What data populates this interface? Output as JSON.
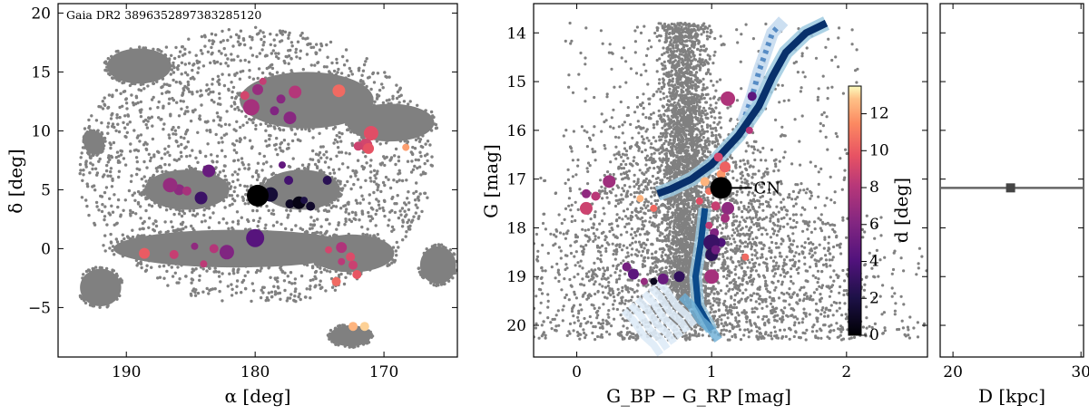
{
  "chart_data": [
    {
      "type": "scatter",
      "panel": "sky",
      "annotation": "Gaia DR2 3896352897383285120",
      "xlabel": "α [deg]",
      "ylabel": "δ [deg]",
      "xlim": [
        195.3,
        164.3
      ],
      "ylim": [
        -9.2,
        20.8
      ],
      "xticks": [
        190,
        180,
        170
      ],
      "yticks": [
        -5,
        0,
        5,
        10,
        15,
        20
      ],
      "target": {
        "x": 179.8,
        "y": 4.5
      },
      "background_color": "#808080",
      "dense_regions": [
        {
          "cx": 176.0,
          "cy": 12.6,
          "rx": 5.2,
          "ry": 2.4
        },
        {
          "cx": 169.5,
          "cy": 10.7,
          "rx": 3.4,
          "ry": 1.6
        },
        {
          "cx": 185.3,
          "cy": 5.0,
          "rx": 3.3,
          "ry": 1.7
        },
        {
          "cx": 176.4,
          "cy": 5.0,
          "rx": 3.0,
          "ry": 1.7
        },
        {
          "cx": 181.5,
          "cy": 0.0,
          "rx": 9.5,
          "ry": 1.6
        },
        {
          "cx": 172.5,
          "cy": -0.4,
          "rx": 3.3,
          "ry": 1.6
        },
        {
          "cx": 192.0,
          "cy": -3.3,
          "rx": 1.6,
          "ry": 1.6
        },
        {
          "cx": 165.8,
          "cy": -1.4,
          "rx": 1.4,
          "ry": 1.6
        },
        {
          "cx": 189.0,
          "cy": 15.5,
          "rx": 2.5,
          "ry": 1.5
        },
        {
          "cx": 192.5,
          "cy": 9.0,
          "rx": 0.8,
          "ry": 1.0
        },
        {
          "cx": 172.6,
          "cy": -7.4,
          "rx": 1.6,
          "ry": 0.9
        }
      ],
      "members": [
        {
          "x": 178.8,
          "y": 4.6,
          "d": 1.5,
          "s": 8
        },
        {
          "x": 177.3,
          "y": 3.8,
          "d": 1.0,
          "s": 5
        },
        {
          "x": 176.6,
          "y": 3.9,
          "d": 0.5,
          "s": 7
        },
        {
          "x": 175.7,
          "y": 3.6,
          "d": 1.2,
          "s": 5
        },
        {
          "x": 176.2,
          "y": 4.1,
          "d": 2.0,
          "s": 4
        },
        {
          "x": 174.4,
          "y": 5.8,
          "d": 2.5,
          "s": 5
        },
        {
          "x": 177.4,
          "y": 5.8,
          "d": 3.5,
          "s": 5
        },
        {
          "x": 177.9,
          "y": 7.1,
          "d": 4.8,
          "s": 4
        },
        {
          "x": 180.0,
          "y": 0.9,
          "d": 4.3,
          "s": 10
        },
        {
          "x": 184.2,
          "y": 4.3,
          "d": 3.2,
          "s": 7
        },
        {
          "x": 183.6,
          "y": 6.6,
          "d": 5.0,
          "s": 7
        },
        {
          "x": 185.9,
          "y": 5.0,
          "d": 6.5,
          "s": 6
        },
        {
          "x": 186.6,
          "y": 5.4,
          "d": 6.8,
          "s": 8
        },
        {
          "x": 185.3,
          "y": 4.9,
          "d": 7.5,
          "s": 5
        },
        {
          "x": 182.2,
          "y": -0.3,
          "d": 6.0,
          "s": 8
        },
        {
          "x": 183.2,
          "y": 0.0,
          "d": 8.0,
          "s": 5
        },
        {
          "x": 184.7,
          "y": 0.2,
          "d": 6.6,
          "s": 4
        },
        {
          "x": 186.3,
          "y": -0.5,
          "d": 8.6,
          "s": 5
        },
        {
          "x": 188.6,
          "y": -0.4,
          "d": 10.0,
          "s": 6
        },
        {
          "x": 184.0,
          "y": -1.3,
          "d": 8.3,
          "s": 4
        },
        {
          "x": 179.8,
          "y": 13.5,
          "d": 6.9,
          "s": 6
        },
        {
          "x": 180.8,
          "y": 13.0,
          "d": 9.0,
          "s": 5
        },
        {
          "x": 180.3,
          "y": 12.0,
          "d": 7.4,
          "s": 9
        },
        {
          "x": 178.0,
          "y": 12.7,
          "d": 6.3,
          "s": 5
        },
        {
          "x": 178.5,
          "y": 11.7,
          "d": 6.0,
          "s": 5
        },
        {
          "x": 177.3,
          "y": 11.1,
          "d": 6.3,
          "s": 7
        },
        {
          "x": 176.9,
          "y": 13.3,
          "d": 8.0,
          "s": 7
        },
        {
          "x": 179.4,
          "y": 14.2,
          "d": 8.5,
          "s": 4
        },
        {
          "x": 173.5,
          "y": 13.4,
          "d": 10.5,
          "s": 7
        },
        {
          "x": 171.0,
          "y": 9.8,
          "d": 9.5,
          "s": 8
        },
        {
          "x": 171.4,
          "y": 8.8,
          "d": 9.0,
          "s": 7
        },
        {
          "x": 171.2,
          "y": 8.5,
          "d": 9.7,
          "s": 6
        },
        {
          "x": 172.0,
          "y": 8.7,
          "d": 8.8,
          "s": 5
        },
        {
          "x": 168.3,
          "y": 8.6,
          "d": 12.0,
          "s": 4
        },
        {
          "x": 173.3,
          "y": 0.1,
          "d": 7.8,
          "s": 6
        },
        {
          "x": 172.6,
          "y": -0.7,
          "d": 9.3,
          "s": 5
        },
        {
          "x": 172.4,
          "y": -1.4,
          "d": 8.7,
          "s": 5
        },
        {
          "x": 173.3,
          "y": -1.1,
          "d": 8.2,
          "s": 4
        },
        {
          "x": 172.1,
          "y": -2.2,
          "d": 9.8,
          "s": 5
        },
        {
          "x": 173.7,
          "y": -2.8,
          "d": 10.5,
          "s": 5
        },
        {
          "x": 174.3,
          "y": -0.1,
          "d": 9.0,
          "s": 4
        },
        {
          "x": 172.4,
          "y": -6.6,
          "d": 12.5,
          "s": 5
        },
        {
          "x": 171.5,
          "y": -6.6,
          "d": 13.0,
          "s": 5
        }
      ]
    },
    {
      "type": "scatter",
      "panel": "cmd",
      "xlabel": "G_BP − G_RP [mag]",
      "ylabel": "G [mag]",
      "xlim": [
        -0.32,
        2.6
      ],
      "ylim": [
        20.65,
        13.4
      ],
      "xticks": [
        0,
        1,
        2
      ],
      "yticks": [
        14,
        15,
        16,
        17,
        18,
        19,
        20
      ],
      "target_label": "CN",
      "target": {
        "x": 1.07,
        "y": 17.18
      },
      "isochrone": {
        "rgb": [
          [
            0.6,
            17.3
          ],
          [
            0.7,
            17.2
          ],
          [
            0.85,
            17.0
          ],
          [
            1.0,
            16.7
          ],
          [
            1.2,
            16.1
          ],
          [
            1.35,
            15.5
          ],
          [
            1.45,
            14.9
          ],
          [
            1.55,
            14.4
          ],
          [
            1.7,
            14.0
          ],
          [
            1.85,
            13.8
          ]
        ],
        "agb": [
          [
            1.25,
            15.7
          ],
          [
            1.3,
            15.3
          ],
          [
            1.35,
            14.8
          ],
          [
            1.4,
            14.4
          ],
          [
            1.45,
            14.0
          ],
          [
            1.5,
            13.85
          ]
        ],
        "ms": [
          [
            0.78,
            19.4
          ],
          [
            0.85,
            19.6
          ],
          [
            0.92,
            19.9
          ],
          [
            1.0,
            20.1
          ],
          [
            1.05,
            20.3
          ]
        ],
        "ms_upper": [
          [
            0.95,
            17.6
          ],
          [
            0.92,
            18.3
          ],
          [
            0.88,
            19.0
          ],
          [
            0.9,
            19.6
          ],
          [
            1.0,
            20.1
          ]
        ]
      },
      "members": [
        {
          "x": 0.95,
          "y": 17.05,
          "d": 12.5,
          "s": 5
        },
        {
          "x": 1.07,
          "y": 16.9,
          "d": 11.8,
          "s": 5
        },
        {
          "x": 1.1,
          "y": 16.75,
          "d": 10.2,
          "s": 6
        },
        {
          "x": 1.05,
          "y": 16.55,
          "d": 9.0,
          "s": 5
        },
        {
          "x": 1.03,
          "y": 17.55,
          "d": 8.6,
          "s": 5
        },
        {
          "x": 1.12,
          "y": 17.6,
          "d": 6.5,
          "s": 7
        },
        {
          "x": 0.98,
          "y": 17.95,
          "d": 8.4,
          "s": 4
        },
        {
          "x": 1.1,
          "y": 17.8,
          "d": 7.3,
          "s": 5
        },
        {
          "x": 1.02,
          "y": 18.1,
          "d": 6.0,
          "s": 5
        },
        {
          "x": 1.07,
          "y": 18.3,
          "d": 4.0,
          "s": 5
        },
        {
          "x": 1.0,
          "y": 18.3,
          "d": 3.2,
          "s": 9
        },
        {
          "x": 1.0,
          "y": 18.55,
          "d": 2.6,
          "s": 7
        },
        {
          "x": 1.03,
          "y": 18.45,
          "d": 5.3,
          "s": 5
        },
        {
          "x": 1.0,
          "y": 19.0,
          "d": 7.4,
          "s": 8
        },
        {
          "x": 1.25,
          "y": 18.6,
          "d": 10.5,
          "s": 4
        },
        {
          "x": 1.12,
          "y": 15.35,
          "d": 7.8,
          "s": 8
        },
        {
          "x": 1.3,
          "y": 15.3,
          "d": 4.5,
          "s": 5
        },
        {
          "x": 1.28,
          "y": 16.0,
          "d": 8.0,
          "s": 4
        },
        {
          "x": 0.07,
          "y": 17.6,
          "d": 8.8,
          "s": 7
        },
        {
          "x": 0.07,
          "y": 17.3,
          "d": 6.6,
          "s": 5
        },
        {
          "x": 0.14,
          "y": 17.35,
          "d": 8.2,
          "s": 5
        },
        {
          "x": 0.24,
          "y": 17.05,
          "d": 7.2,
          "s": 7
        },
        {
          "x": 0.47,
          "y": 17.4,
          "d": 12.5,
          "s": 4
        },
        {
          "x": 0.57,
          "y": 17.6,
          "d": 10.5,
          "s": 4
        },
        {
          "x": 0.37,
          "y": 18.8,
          "d": 5.5,
          "s": 5
        },
        {
          "x": 0.42,
          "y": 18.95,
          "d": 4.5,
          "s": 6
        },
        {
          "x": 0.5,
          "y": 19.1,
          "d": 6.8,
          "s": 4
        },
        {
          "x": 0.57,
          "y": 19.1,
          "d": 0.8,
          "s": 4
        },
        {
          "x": 0.64,
          "y": 19.05,
          "d": 5.0,
          "s": 6
        },
        {
          "x": 0.76,
          "y": 19.0,
          "d": 2.8,
          "s": 6
        },
        {
          "x": 0.98,
          "y": 17.25,
          "d": 10.8,
          "s": 4
        },
        {
          "x": 0.91,
          "y": 17.45,
          "d": 9.5,
          "s": 4
        }
      ],
      "colorbar": {
        "label": "d [deg]",
        "min": 0,
        "max": 13.5,
        "ticks": [
          0,
          2,
          4,
          6,
          8,
          10,
          12
        ]
      }
    },
    {
      "type": "errorbar",
      "panel": "distance",
      "xlabel": "D [kpc]",
      "xlim": [
        19.0,
        30.2
      ],
      "xticks": [
        20,
        30
      ],
      "point": 24.5,
      "error_range": [
        19.0,
        30.2
      ]
    }
  ]
}
